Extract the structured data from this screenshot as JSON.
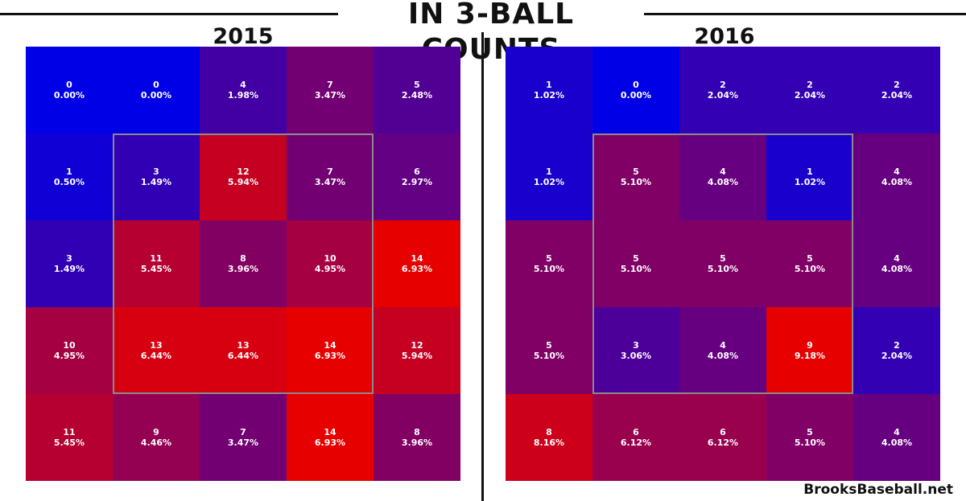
{
  "header": {
    "title": "IN 3-BALL COUNTS",
    "watermark": "BrooksBaseball.net"
  },
  "chart_data": [
    {
      "type": "heatmap",
      "title": "2015",
      "rows": 5,
      "cols": 5,
      "counts": [
        [
          0,
          0,
          4,
          7,
          5
        ],
        [
          1,
          3,
          12,
          7,
          6
        ],
        [
          3,
          11,
          8,
          10,
          14
        ],
        [
          10,
          13,
          13,
          14,
          12
        ],
        [
          11,
          9,
          7,
          14,
          8
        ]
      ],
      "percents": [
        [
          "0.00%",
          "0.00%",
          "1.98%",
          "3.47%",
          "2.48%"
        ],
        [
          "0.50%",
          "1.49%",
          "5.94%",
          "3.47%",
          "2.97%"
        ],
        [
          "1.49%",
          "5.45%",
          "3.96%",
          "4.95%",
          "6.93%"
        ],
        [
          "4.95%",
          "6.44%",
          "6.44%",
          "6.93%",
          "5.94%"
        ],
        [
          "5.45%",
          "4.46%",
          "3.47%",
          "6.93%",
          "3.96%"
        ]
      ],
      "color_low": "#0000e6",
      "color_high": "#e60000"
    },
    {
      "type": "heatmap",
      "title": "2016",
      "rows": 5,
      "cols": 5,
      "counts": [
        [
          1,
          0,
          2,
          2,
          2
        ],
        [
          1,
          5,
          4,
          1,
          4
        ],
        [
          5,
          5,
          5,
          5,
          4
        ],
        [
          5,
          3,
          4,
          9,
          2
        ],
        [
          8,
          6,
          6,
          5,
          4
        ]
      ],
      "percents": [
        [
          "1.02%",
          "0.00%",
          "2.04%",
          "2.04%",
          "2.04%"
        ],
        [
          "1.02%",
          "5.10%",
          "4.08%",
          "1.02%",
          "4.08%"
        ],
        [
          "5.10%",
          "5.10%",
          "5.10%",
          "5.10%",
          "4.08%"
        ],
        [
          "5.10%",
          "3.06%",
          "4.08%",
          "9.18%",
          "2.04%"
        ],
        [
          "8.16%",
          "6.12%",
          "6.12%",
          "5.10%",
          "4.08%"
        ]
      ],
      "color_low": "#0000e6",
      "color_high": "#e60000"
    }
  ]
}
